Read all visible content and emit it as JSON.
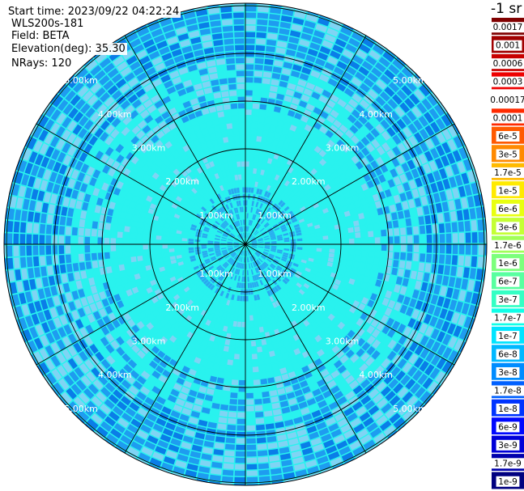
{
  "info": {
    "start_time": "Start time: 2023/09/22 04:22:24",
    "instrument": "WLS200s-181",
    "field": "Field: BETA",
    "elevation": "Elevation(deg): 35.30",
    "nrays": "NRays: 120"
  },
  "colorbar": {
    "unit": "-1 sr",
    "entries": [
      {
        "label": "0.0017",
        "color": "#800000"
      },
      {
        "label": "0.001",
        "color": "#a10000"
      },
      {
        "label": "0.0006",
        "color": "#c80000"
      },
      {
        "label": "0.0003",
        "color": "#ee0000"
      },
      {
        "label": "0.00017",
        "color": "#ffffff"
      },
      {
        "label": "0.0001",
        "color": "#ff2a00"
      },
      {
        "label": "6e-5",
        "color": "#ff5a00"
      },
      {
        "label": "3e-5",
        "color": "#ff8a00"
      },
      {
        "label": "1.7e-5",
        "color": "#ffba00"
      },
      {
        "label": "1e-5",
        "color": "#ffea00"
      },
      {
        "label": "6e-6",
        "color": "#e8ff10"
      },
      {
        "label": "3e-6",
        "color": "#c4ff34"
      },
      {
        "label": "1.7e-6",
        "color": "#a0ff58"
      },
      {
        "label": "1e-6",
        "color": "#7cff7c"
      },
      {
        "label": "6e-7",
        "color": "#58ffa0"
      },
      {
        "label": "3e-7",
        "color": "#34ffc4"
      },
      {
        "label": "1.7e-7",
        "color": "#10ffe8"
      },
      {
        "label": "1e-7",
        "color": "#00e4ff"
      },
      {
        "label": "6e-8",
        "color": "#00b8ff"
      },
      {
        "label": "3e-8",
        "color": "#008cff"
      },
      {
        "label": "1.7e-8",
        "color": "#0060ff"
      },
      {
        "label": "1e-8",
        "color": "#0034ff"
      },
      {
        "label": "6e-9",
        "color": "#0008ff"
      },
      {
        "label": "3e-9",
        "color": "#0000d8"
      },
      {
        "label": "1.7e-9",
        "color": "#0000ac"
      },
      {
        "label": "1e-9",
        "color": "#000080"
      }
    ]
  },
  "range_rings": [
    "1.00km",
    "2.00km",
    "3.00km",
    "4.00km",
    "5.00km"
  ],
  "colors": {
    "far_field_light": "#7fd4f4",
    "far_field_mid": "#1e9cf0",
    "far_field_dark": "#0a7de8",
    "near_field": "#29f2ee",
    "core": "#2aa8f0"
  }
}
